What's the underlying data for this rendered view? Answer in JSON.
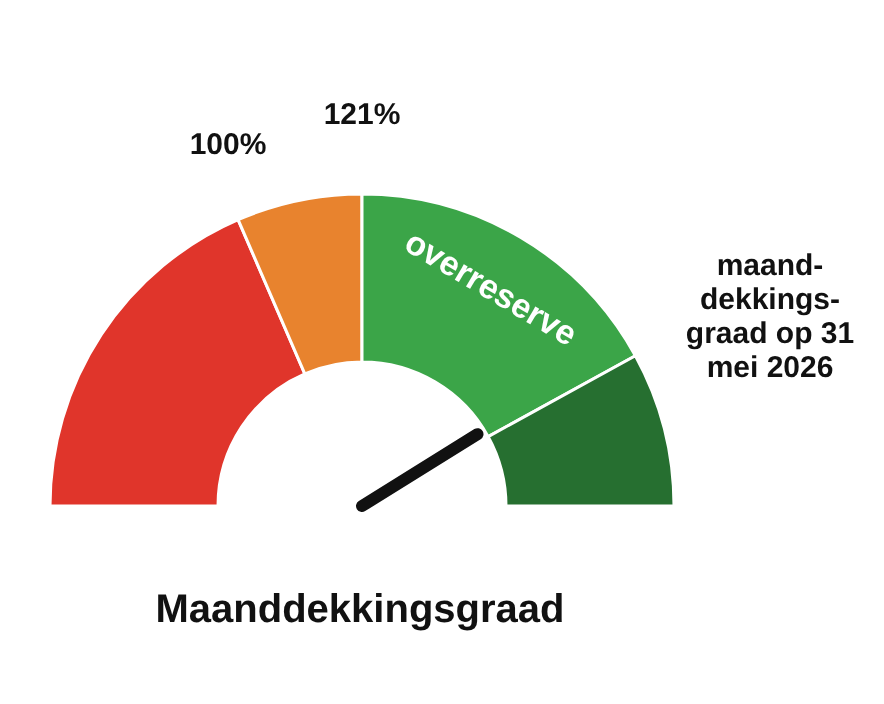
{
  "chart_data": {
    "type": "donut",
    "title": "Maanddekkingsgraad",
    "categories": [
      null,
      null,
      "overreserve",
      null
    ],
    "values": [
      37,
      13,
      34,
      16
    ],
    "colors": [
      "#e0352b",
      "#e8832e",
      "#3ba548",
      "#266f30"
    ],
    "needle": "overreserve",
    "annotations": [
      "100%",
      "121%",
      "maand-dekkings-graad op 31 mei 2026"
    ]
  }
}
